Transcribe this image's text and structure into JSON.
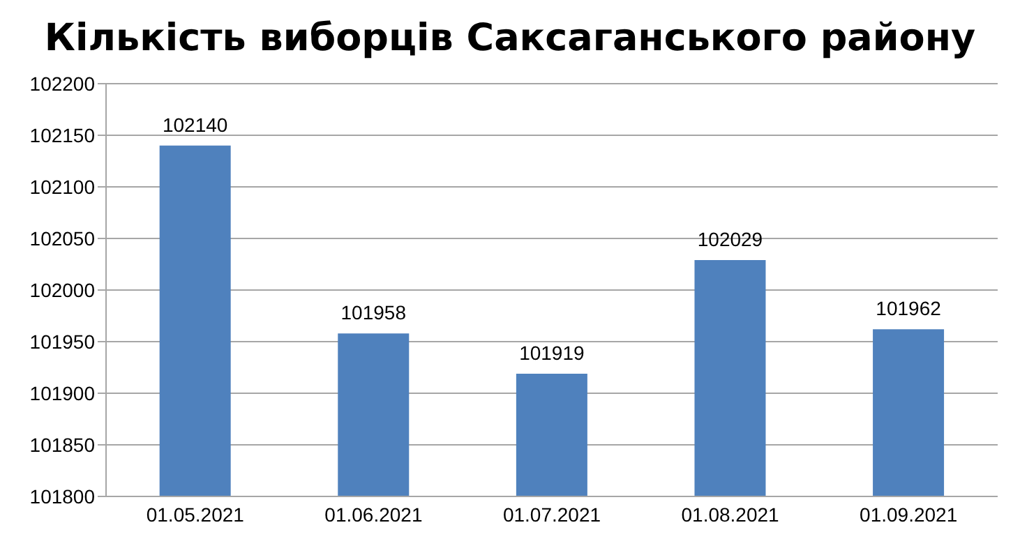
{
  "chart_data": {
    "type": "bar",
    "title": "Кількість виборців Саксаганського району",
    "categories": [
      "01.05.2021",
      "01.06.2021",
      "01.07.2021",
      "01.08.2021",
      "01.09.2021"
    ],
    "values": [
      102140,
      101958,
      101919,
      102029,
      101962
    ],
    "color": "#4f81bd",
    "ylim": [
      101800,
      102200
    ],
    "yticks": [
      101800,
      101850,
      101900,
      101950,
      102000,
      102050,
      102100,
      102150,
      102200
    ],
    "grid": "y",
    "data_labels": true
  }
}
